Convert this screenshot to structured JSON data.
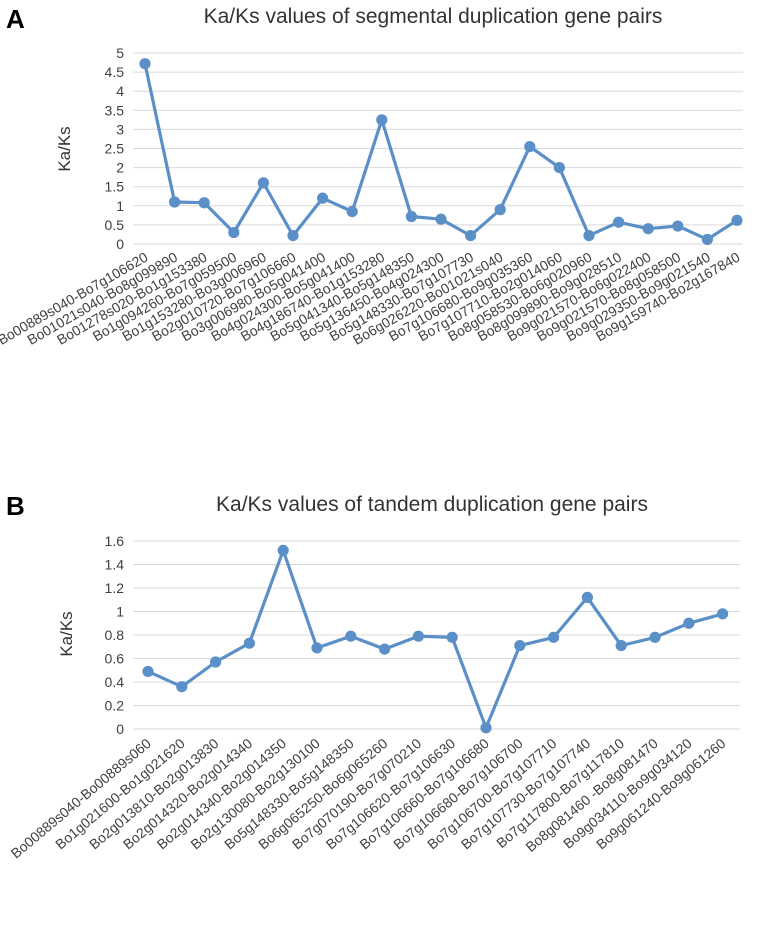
{
  "chart_data": [
    {
      "panel": "A",
      "type": "line",
      "title": "Ka/Ks values of segmental duplication gene pairs",
      "xlabel": "",
      "ylabel": "Ka/Ks",
      "ylim": [
        0,
        5
      ],
      "yticks": [
        0,
        0.5,
        1,
        1.5,
        2,
        2.5,
        3,
        3.5,
        4,
        4.5,
        5
      ],
      "grid": true,
      "line_color": "#5b8fc7",
      "categories": [
        "Bo00889s040-Bo7g106620",
        "Bo01021s040-Bo8g099890",
        "Bo01278s020-Bo1g153380",
        "Bo1g094260-Bo7g059500",
        "Bo1g153280-Bo3g006960",
        "Bo2g010720-Bo7g106660",
        "Bo3g006980-Bo5g041400",
        "Bo4g024300-Bo5g041400",
        "Bo4g186740-Bo1g153280",
        "Bo5g041340-Bo5g148350",
        "Bo5g136450-Bo4g024300",
        "Bo5g148330-Bo7g107730",
        "Bo6g026220-Bo01021s040",
        "Bo7g106680-Bo9g035360",
        "Bo7g107710-Bo2g014060",
        "Bo8g058530-Bo6g020960",
        "Bo8g099890-Bo9g028510",
        "Bo9g021570-Bo6g022400",
        "Bo9g021570-Bo8g058500",
        "Bo9g029350-Bo9g021540",
        "Bo9g159740-Bo2g167840"
      ],
      "values": [
        4.72,
        1.1,
        1.08,
        0.3,
        1.6,
        0.22,
        1.2,
        0.85,
        3.25,
        0.72,
        0.65,
        0.22,
        0.9,
        2.55,
        2.0,
        0.22,
        0.57,
        0.4,
        0.47,
        0.12,
        0.62
      ]
    },
    {
      "panel": "B",
      "type": "line",
      "title": "Ka/Ks values of tandem duplication gene pairs",
      "xlabel": "",
      "ylabel": "Ka/Ks",
      "ylim": [
        0,
        1.6
      ],
      "yticks": [
        0,
        0.2,
        0.4,
        0.6,
        0.8,
        1,
        1.2,
        1.4,
        1.6
      ],
      "grid": true,
      "line_color": "#5b8fc7",
      "categories": [
        "Bo00889s040-Bo00889s060",
        "Bo1g021600-Bo1g021620",
        "Bo2g013810-Bo2g013830",
        "Bo2g014320-Bo2g014340",
        "Bo2g014340-Bo2g014350",
        "Bo2g130080-Bo2g130100",
        "Bo5g148330-Bo5g148350",
        "Bo6g065250-Bo6g065260",
        "Bo7g070190-Bo7g070210",
        "Bo7g106620-Bo7g106630",
        "Bo7g106660-Bo7g106680",
        "Bo7g106680-Bo7g106700",
        "Bo7g106700-Bo7g107710",
        "Bo7g107730-Bo7g107740",
        "Bo7g117800-Bo7g117810",
        "Bo8g081460 -Bo8g081470",
        "Bo9g034110-Bo9g034120",
        "Bo9g061240-Bo9g061260"
      ],
      "values": [
        0.49,
        0.36,
        0.57,
        0.73,
        1.52,
        0.69,
        0.79,
        0.68,
        0.79,
        0.78,
        0.01,
        0.71,
        0.78,
        1.12,
        0.71,
        0.78,
        0.9,
        0.98
      ]
    }
  ]
}
